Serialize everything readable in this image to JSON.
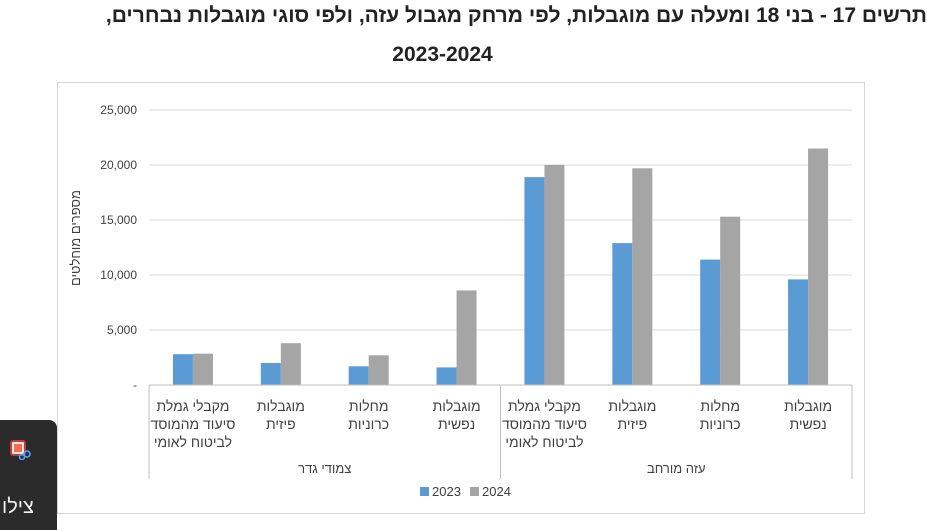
{
  "title": "תרשים 17 - בני 18 ומעלה עם מוגבלות, לפי מרחק מגבול עזה, ולפי סוגי מוגבלות נבחרים,",
  "subtitle": "2023-2024",
  "snipping_tool": {
    "label": "צילו",
    "icon": "scissors-icon"
  },
  "chart_data": {
    "type": "bar",
    "ylabel": "מספרים מוחלטים",
    "ylim": [
      0,
      25000
    ],
    "y_ticks": [
      "-",
      "5,000",
      "10,000",
      "15,000",
      "20,000",
      "25,000"
    ],
    "grid": true,
    "legend_position": "bottom",
    "groups": [
      {
        "name": "עזה מורחב",
        "categories": [
          [
            "מוגבלות",
            "נפשית"
          ],
          [
            "מחלות",
            "כרוניות"
          ],
          [
            "מוגבלות",
            "פיזית"
          ],
          [
            "מקבלי גמלת",
            "סיעוד מהמוסד",
            "לביטוח לאומי"
          ]
        ],
        "values_2023": [
          9600,
          11400,
          12900,
          18900
        ],
        "values_2024": [
          21500,
          15300,
          19700,
          20000
        ]
      },
      {
        "name": "צמודי גדר",
        "categories": [
          [
            "מוגבלות",
            "נפשית"
          ],
          [
            "מחלות",
            "כרוניות"
          ],
          [
            "מוגבלות",
            "פיזית"
          ],
          [
            "מקבלי גמלת",
            "סיעוד מהמוסד",
            "לביטוח לאומי"
          ]
        ],
        "values_2023": [
          1600,
          1700,
          2000,
          2800
        ],
        "values_2024": [
          8600,
          2700,
          3800,
          2850
        ]
      }
    ],
    "series": [
      {
        "name": "2023",
        "color": "#5b9bd5"
      },
      {
        "name": "2024",
        "color": "#a5a5a5"
      }
    ]
  }
}
